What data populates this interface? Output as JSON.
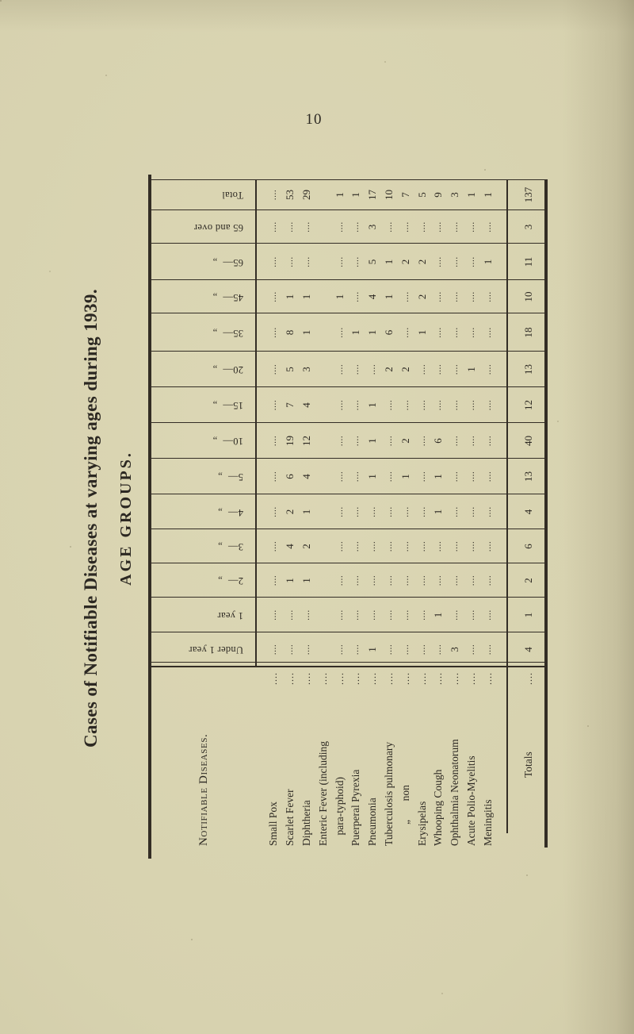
{
  "page": {
    "number": "10"
  },
  "titles": {
    "main": "Cases of Notifiable Diseases at varying ages during 1939.",
    "sub": "AGE GROUPS."
  },
  "table": {
    "corner_header": "Notifiable Diseases.",
    "age_headers": [
      "Under 1 year",
      "1 year",
      "2—  „",
      "3—  „",
      "4—  „",
      "5—  „",
      "10—  „",
      "15—  „",
      "20—  „",
      "35—  „",
      "45—  „",
      "65—  „",
      "65 and over",
      "Total"
    ],
    "leader": "....",
    "rows": [
      {
        "name": "Small Pox",
        "cells": [
          "....",
          "....",
          "....",
          "....",
          "....",
          "....",
          "....",
          "....",
          "....",
          "....",
          "....",
          "....",
          "....",
          "...."
        ]
      },
      {
        "name": "Scarlet Fever",
        "cells": [
          "....",
          "....",
          "1",
          "4",
          "2",
          "6",
          "19",
          "7",
          "5",
          "8",
          "1",
          "....",
          "....",
          "53"
        ]
      },
      {
        "name": "Diphtheria",
        "cells": [
          "....",
          "....",
          "1",
          "2",
          "1",
          "4",
          "12",
          "4",
          "3",
          "1",
          "1",
          "....",
          "....",
          "29"
        ]
      },
      {
        "name": "Enteric Fever (including",
        "cells": null
      },
      {
        "name": "    para-typhoid)",
        "cells": [
          "....",
          "....",
          "....",
          "....",
          "....",
          "....",
          "....",
          "....",
          "....",
          "....",
          "1",
          "....",
          "....",
          "1"
        ]
      },
      {
        "name": "Puerperal Pyrexia",
        "cells": [
          "....",
          "....",
          "....",
          "....",
          "....",
          "....",
          "....",
          "....",
          "....",
          "1",
          "....",
          "....",
          "....",
          "1"
        ]
      },
      {
        "name": "Pneumonia",
        "cells": [
          "1",
          "....",
          "....",
          "....",
          "....",
          "1",
          "1",
          "1",
          "....",
          "1",
          "4",
          "5",
          "3",
          "17"
        ]
      },
      {
        "name": "Tuberculosis pulmonary",
        "cells": [
          "....",
          "....",
          "....",
          "....",
          "....",
          "....",
          "....",
          "....",
          "2",
          "6",
          "1",
          "1",
          "....",
          "10"
        ]
      },
      {
        "name": "        „       non",
        "cells": [
          "....",
          "....",
          "....",
          "....",
          "....",
          "1",
          "2",
          "....",
          "2",
          "....",
          "....",
          "2",
          "....",
          "7"
        ]
      },
      {
        "name": "Erysipelas",
        "cells": [
          "....",
          "....",
          "....",
          "....",
          "....",
          "....",
          "....",
          "....",
          "....",
          "1",
          "2",
          "2",
          "....",
          "5"
        ]
      },
      {
        "name": "Whooping Cough",
        "cells": [
          "....",
          "1",
          "....",
          "....",
          "1",
          "1",
          "6",
          "....",
          "....",
          "....",
          "....",
          "....",
          "....",
          "9"
        ]
      },
      {
        "name": "Ophthalmia Neonatorum",
        "cells": [
          "3",
          "....",
          "....",
          "....",
          "....",
          "....",
          "....",
          "....",
          "....",
          "....",
          "....",
          "....",
          "....",
          "3"
        ]
      },
      {
        "name": "Acute Polio-Myelitis",
        "cells": [
          "....",
          "....",
          "....",
          "....",
          "....",
          "....",
          "....",
          "....",
          "1",
          "....",
          "....",
          "....",
          "....",
          "1"
        ]
      },
      {
        "name": "Meningitis",
        "cells": [
          "....",
          "....",
          "....",
          "....",
          "....",
          "....",
          "....",
          "....",
          "....",
          "....",
          "....",
          "1",
          "....",
          "1"
        ]
      }
    ],
    "totals_row": {
      "label": "Totals",
      "cells": [
        "4",
        "1",
        "2",
        "6",
        "4",
        "13",
        "40",
        "12",
        "13",
        "18",
        "10",
        "11",
        "3",
        "137"
      ]
    }
  }
}
